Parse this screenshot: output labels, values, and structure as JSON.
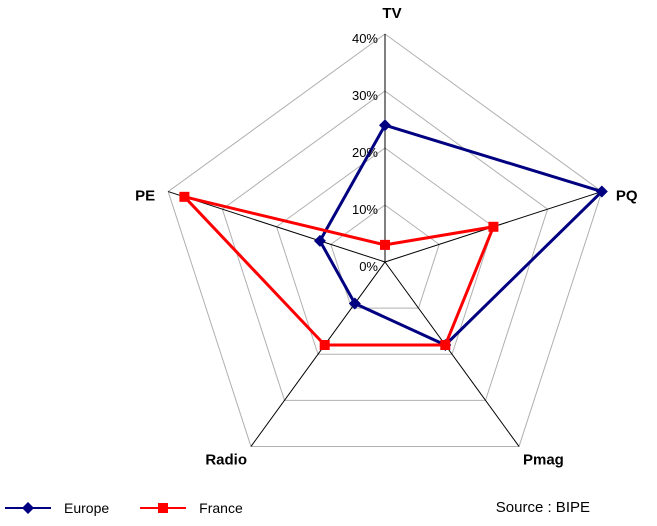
{
  "chart_data": {
    "type": "radar",
    "categories": [
      "TV",
      "PQ",
      "Pmag",
      "Radio",
      "PE"
    ],
    "series": [
      {
        "name": "Europe",
        "color": "#000080",
        "marker": "diamond",
        "values": [
          24,
          40,
          18,
          9,
          12
        ]
      },
      {
        "name": "France",
        "color": "#FF0000",
        "marker": "square",
        "values": [
          3,
          20,
          18,
          18,
          37
        ]
      }
    ],
    "r_axis": {
      "min": 0,
      "max": 40,
      "step": 10,
      "tick_labels": [
        "0%",
        "10%",
        "20%",
        "30%",
        "40%"
      ]
    },
    "grid": true,
    "grid_color": "#b0b0b0",
    "spoke_color": "#000000",
    "legend_position": "bottom-left"
  },
  "footer": {
    "source": "Source : BIPE"
  }
}
